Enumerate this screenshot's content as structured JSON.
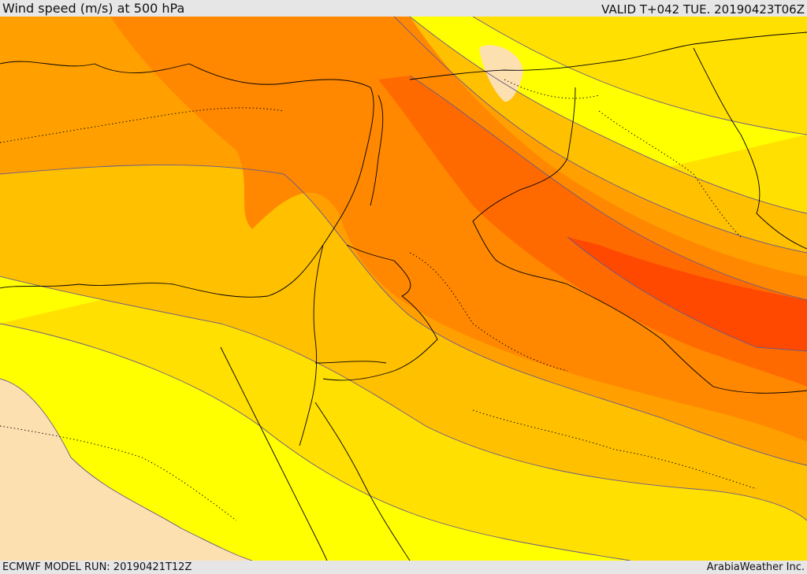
{
  "header": {
    "title": "Wind speed (m/s) at 500 hPa",
    "valid_time": "VALID T+042 TUE. 20190423T06Z"
  },
  "footer": {
    "model_run": "ECMWF MODEL RUN: 20190421T12Z",
    "credit": "ArabiaWeather Inc."
  },
  "colors": {
    "band_1": "#fde0b0",
    "band_2": "#ffff00",
    "band_3": "#ffe000",
    "band_4": "#ffc000",
    "band_5": "#ffa000",
    "band_6": "#ff8800",
    "band_7": "#ff6a00",
    "band_8": "#ff4800",
    "coast": "#000000",
    "contour": "#6a5a8a"
  }
}
